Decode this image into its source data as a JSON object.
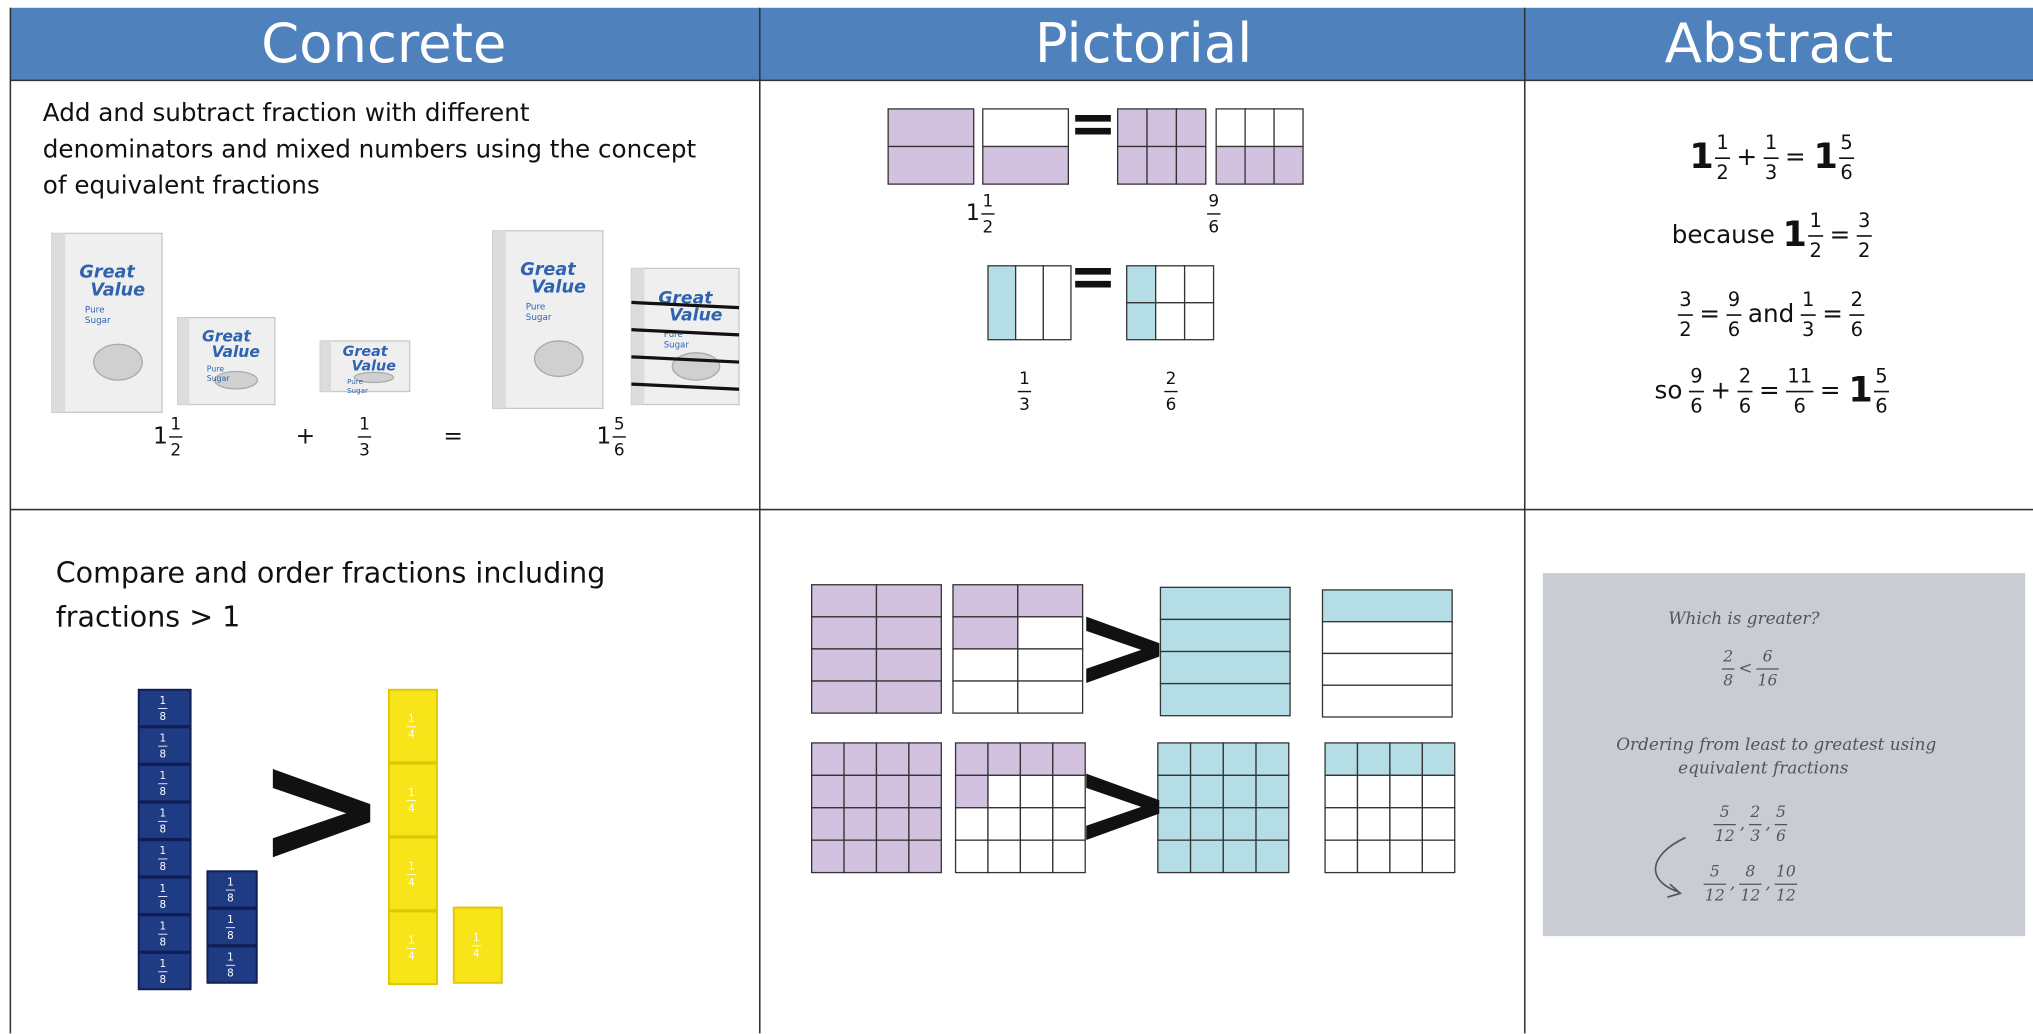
{
  "header": {
    "columns": [
      "Concrete",
      "Pictorial",
      "Abstract"
    ]
  },
  "rows": [
    {
      "concrete": {
        "lines": [
          "Add and subtract fraction with different",
          "denominators and mixed numbers using the concept",
          "of equivalent fractions"
        ],
        "bag_label": {
          "brand": [
            "Great",
            "Value"
          ],
          "product": [
            "Pure",
            "Sugar"
          ]
        },
        "equation": [
          {
            "whole": "1",
            "num": "1",
            "den": "2"
          },
          "+",
          {
            "num": "1",
            "den": "3"
          },
          "=",
          {
            "whole": "1",
            "num": "5",
            "den": "6"
          }
        ]
      },
      "pictorial": {
        "equals": "=",
        "labels": [
          {
            "whole": "1",
            "num": "1",
            "den": "2"
          },
          {
            "num": "9",
            "den": "6"
          },
          {
            "num": "1",
            "den": "3"
          },
          {
            "num": "2",
            "den": "6"
          }
        ]
      },
      "abstract": {
        "lines": [
          [
            {
              "whole": "1",
              "num": "1",
              "den": "2"
            },
            "+",
            {
              "num": "1",
              "den": "3"
            },
            "=",
            {
              "whole": "1",
              "num": "5",
              "den": "6"
            }
          ],
          [
            "because",
            {
              "whole": "1",
              "num": "1",
              "den": "2"
            },
            "=",
            {
              "num": "3",
              "den": "2"
            }
          ],
          [
            {
              "num": "3",
              "den": "2"
            },
            "=",
            {
              "num": "9",
              "den": "6"
            },
            "and",
            {
              "num": "1",
              "den": "3"
            },
            "=",
            {
              "num": "2",
              "den": "6"
            }
          ],
          [
            "so",
            {
              "num": "9",
              "den": "6"
            },
            "+",
            {
              "num": "2",
              "den": "6"
            },
            "=",
            {
              "num": "11",
              "den": "6"
            },
            "=",
            {
              "whole": "1",
              "num": "5",
              "den": "6"
            }
          ]
        ]
      }
    },
    {
      "concrete": {
        "lines": [
          "Compare and order fractions including",
          "fractions > 1"
        ],
        "comparison": ">",
        "eighth": {
          "num": "1",
          "den": "8"
        },
        "quarter": {
          "num": "1",
          "den": "4"
        }
      },
      "pictorial": {
        "comparison": ">"
      },
      "abstract": {
        "notes": {
          "question": "Which is greater?",
          "comparison": [
            {
              "num": "2",
              "den": "8"
            },
            "<",
            {
              "num": "6",
              "den": "16"
            }
          ],
          "heading": [
            "Ordering from least to greatest using",
            "equivalent fractions"
          ],
          "orders": [
            [
              {
                "num": "5",
                "den": "12"
              },
              ",",
              {
                "num": "2",
                "den": "3"
              },
              ",",
              {
                "num": "5",
                "den": "6"
              }
            ],
            [
              {
                "num": "5",
                "den": "12"
              },
              ",",
              {
                "num": "8",
                "den": "12"
              },
              ",",
              {
                "num": "10",
                "den": "12"
              }
            ]
          ]
        }
      }
    }
  ]
}
